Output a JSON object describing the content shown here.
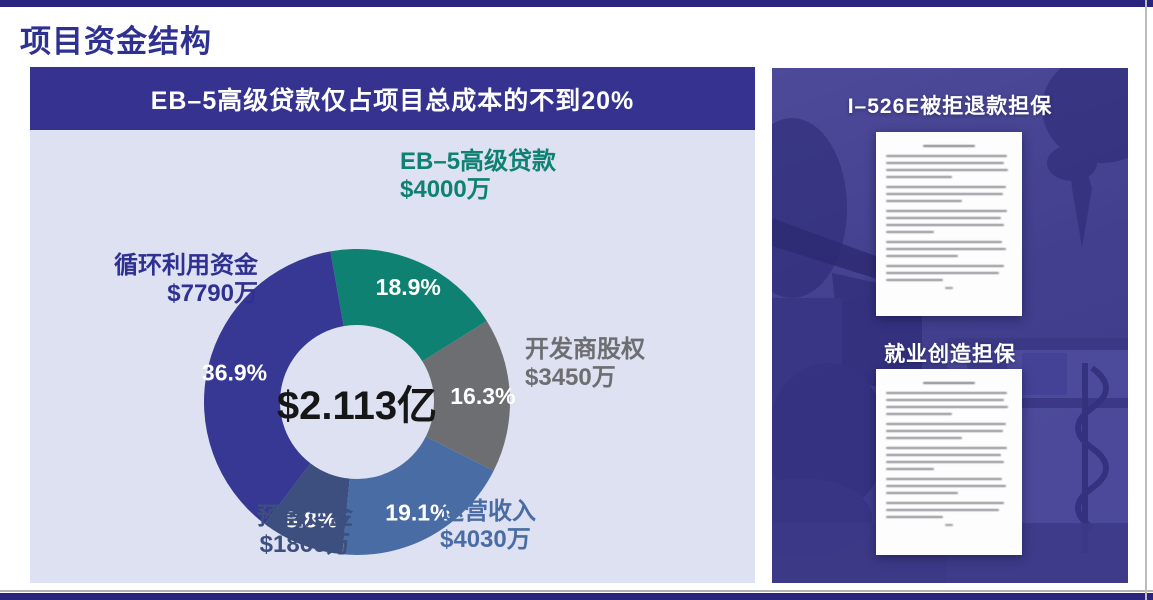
{
  "page": {
    "title": "项目资金结构"
  },
  "left_panel": {
    "banner_title": "EB–5高级贷款仅占项目总成本的不到20%"
  },
  "chart_data": {
    "type": "pie",
    "subtype": "donut",
    "title": "EB–5高级贷款仅占项目总成本的不到20%",
    "center_label": "$2.113亿",
    "start_angle_deg": -10,
    "legend_position": "callouts-around-chart",
    "slices": [
      {
        "label": "EB–5高级贷款",
        "amount": "$4000万",
        "value_pct": 18.9,
        "color": "#0e8173"
      },
      {
        "label": "开发商股权",
        "amount": "$3450万",
        "value_pct": 16.3,
        "color": "#6d6e71"
      },
      {
        "label": "运营收入",
        "amount": "$4030万",
        "value_pct": 19.1,
        "color": "#4a6ca4"
      },
      {
        "label": "预售定金",
        "amount": "$1860万",
        "value_pct": 8.8,
        "color": "#3c4f7e"
      },
      {
        "label": "循环利用资金",
        "amount": "$7790万",
        "value_pct": 36.9,
        "color": "#373794"
      }
    ]
  },
  "right_panel": {
    "guarantee_1_title": "I–526E被拒退款担保",
    "guarantee_2_title": "就业创造担保"
  },
  "colors": {
    "frame_bar": "#29257f",
    "page_title": "#2f3192",
    "banner_bg": "#363390",
    "chart_panel_bg": "#dde1f1",
    "right_panel_tint": "#45438f",
    "percent_label_text": "#ffffff"
  }
}
